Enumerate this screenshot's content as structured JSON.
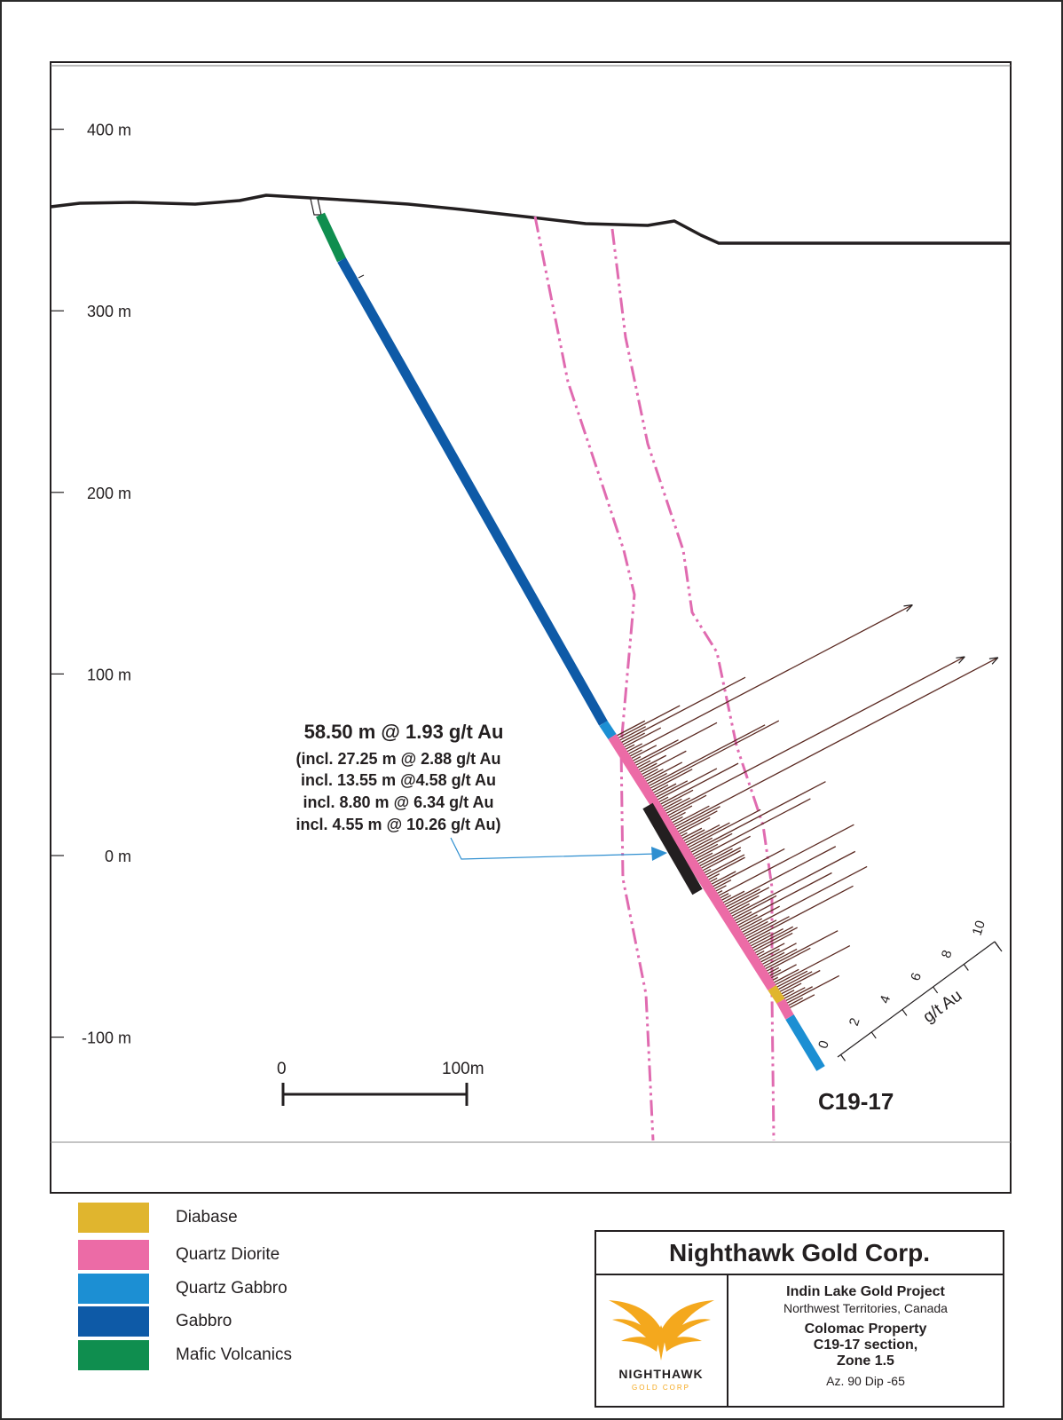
{
  "section": {
    "elevation_labels": [
      "400 m",
      "300 m",
      "200 m",
      "100 m",
      "0 m",
      "-100 m"
    ],
    "elevations_m": [
      400,
      300,
      200,
      100,
      0,
      -100
    ],
    "hole_id": "C19-17",
    "intercept_lines": [
      "58.50 m @ 1.93 g/t Au",
      "(incl. 27.25 m @ 2.88 g/t Au",
      "incl. 13.55 m @4.58 g/t Au",
      "incl. 8.80 m @ 6.34 g/t Au",
      "incl. 4.55 m @ 10.26 g/t Au)"
    ],
    "scale_bar": {
      "start_label": "0",
      "end_label": "100m"
    },
    "grade_axis": {
      "label": "g/t Au",
      "ticks": [
        "0",
        "2",
        "4",
        "6",
        "8",
        "10"
      ]
    },
    "colors": {
      "terrain": "#231f20",
      "zone_boundary": "#e06bb0",
      "gold_histogram": "#5b2a22",
      "intercept_bar": "#231f20",
      "arrow": "#2f8fd0"
    }
  },
  "legend": [
    {
      "label": "Diabase",
      "color": "#e0b52e"
    },
    {
      "label": "Quartz Diorite",
      "color": "#ec6ba6"
    },
    {
      "label": "Quartz Gabbro",
      "color": "#1c8fd3"
    },
    {
      "label": "Gabbro",
      "color": "#0e5aa7"
    },
    {
      "label": "Mafic Volcanics",
      "color": "#0f8e4f"
    }
  ],
  "title_block": {
    "company": "Nighthawk Gold Corp.",
    "logo": {
      "icon": "eagle-wings-icon",
      "name": "NIGHTHAWK",
      "subtitle": "GOLD CORP",
      "color": "#f4a81d"
    },
    "project": "Indin Lake Gold Project",
    "location": "Northwest Territories, Canada",
    "property": "Colomac Property",
    "section_name": "C19-17 section,",
    "zone": "Zone 1.5",
    "orientation": "Az. 90  Dip -65"
  }
}
